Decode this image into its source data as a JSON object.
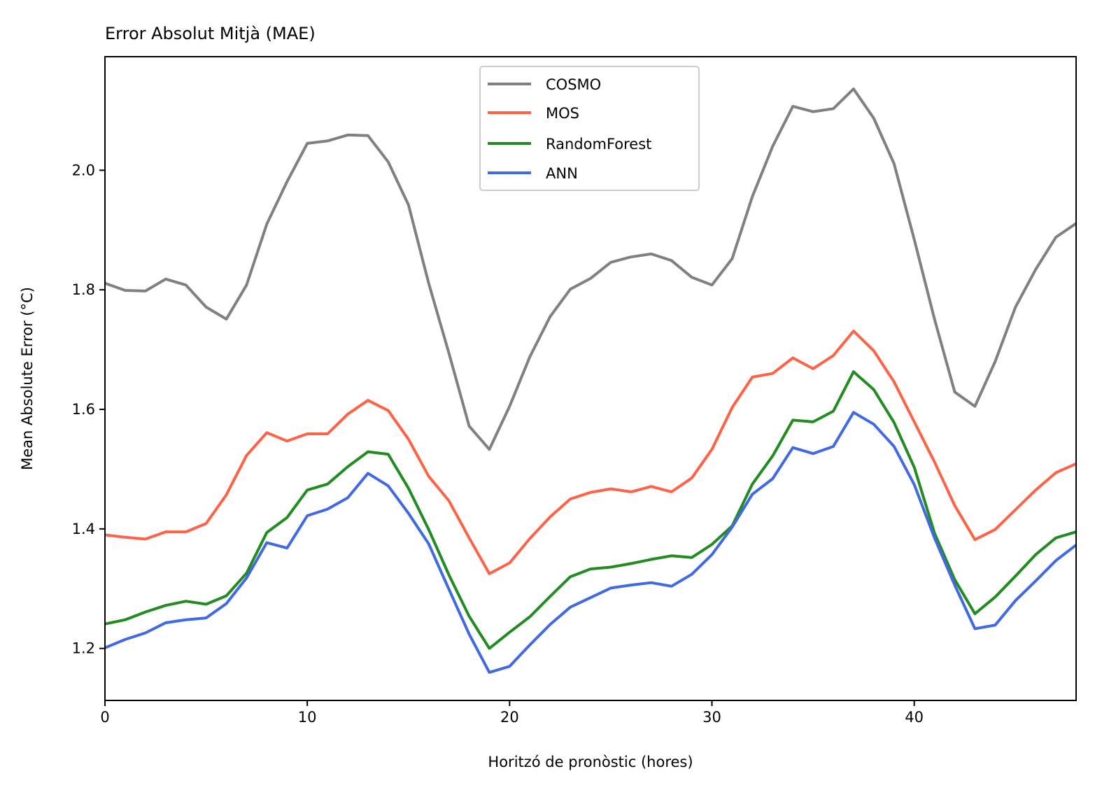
{
  "chart_data": {
    "type": "line",
    "title": "Error Absolut Mitjà (MAE)",
    "xlabel": "Horitzó de pronòstic (hores)",
    "ylabel": "Mean Absolute Error (°C)",
    "xlim": [
      0,
      48
    ],
    "ylim": [
      1.113,
      2.19
    ],
    "xticks": [
      0,
      10,
      20,
      30,
      40
    ],
    "xtick_labels": [
      "0",
      "10",
      "20",
      "30",
      "40"
    ],
    "yticks": [
      1.2,
      1.4,
      1.6,
      1.8,
      2.0
    ],
    "ytick_labels": [
      "1.2",
      "1.4",
      "1.6",
      "1.8",
      "2.0"
    ],
    "grid": false,
    "legend_position": "top-center",
    "x": [
      0,
      1,
      2,
      3,
      4,
      5,
      6,
      7,
      8,
      9,
      10,
      11,
      12,
      13,
      14,
      15,
      16,
      17,
      18,
      19,
      20,
      21,
      22,
      23,
      24,
      25,
      26,
      27,
      28,
      29,
      30,
      31,
      32,
      33,
      34,
      35,
      36,
      37,
      38,
      39,
      40,
      41,
      42,
      43,
      44,
      45,
      46,
      47,
      48
    ],
    "series": [
      {
        "name": "COSMO",
        "color": "#808080",
        "values": [
          1.811,
          1.799,
          1.798,
          1.818,
          1.808,
          1.771,
          1.751,
          1.808,
          1.91,
          1.981,
          2.045,
          2.049,
          2.059,
          2.058,
          2.014,
          1.942,
          1.811,
          1.694,
          1.572,
          1.533,
          1.605,
          1.688,
          1.755,
          1.801,
          1.819,
          1.846,
          1.855,
          1.86,
          1.849,
          1.821,
          1.808,
          1.852,
          1.956,
          2.04,
          2.107,
          2.098,
          2.103,
          2.136,
          2.087,
          2.011,
          1.884,
          1.751,
          1.629,
          1.605,
          1.68,
          1.771,
          1.834,
          1.888,
          1.911
        ]
      },
      {
        "name": "MOS",
        "color": "#ff6347",
        "values": [
          1.39,
          1.386,
          1.383,
          1.395,
          1.395,
          1.409,
          1.457,
          1.523,
          1.561,
          1.547,
          1.559,
          1.559,
          1.592,
          1.615,
          1.598,
          1.55,
          1.488,
          1.447,
          1.385,
          1.325,
          1.343,
          1.384,
          1.42,
          1.45,
          1.461,
          1.467,
          1.462,
          1.471,
          1.462,
          1.485,
          1.533,
          1.603,
          1.654,
          1.66,
          1.686,
          1.668,
          1.69,
          1.731,
          1.698,
          1.646,
          1.579,
          1.512,
          1.439,
          1.382,
          1.399,
          1.432,
          1.465,
          1.494,
          1.509
        ]
      },
      {
        "name": "RandomForest",
        "color": "#228b22",
        "values": [
          1.241,
          1.248,
          1.261,
          1.272,
          1.279,
          1.274,
          1.288,
          1.326,
          1.394,
          1.419,
          1.465,
          1.475,
          1.504,
          1.529,
          1.525,
          1.468,
          1.399,
          1.323,
          1.254,
          1.2,
          1.227,
          1.253,
          1.287,
          1.32,
          1.333,
          1.336,
          1.342,
          1.349,
          1.355,
          1.352,
          1.374,
          1.405,
          1.475,
          1.522,
          1.582,
          1.579,
          1.597,
          1.663,
          1.633,
          1.578,
          1.503,
          1.393,
          1.315,
          1.258,
          1.286,
          1.321,
          1.357,
          1.385,
          1.395
        ]
      },
      {
        "name": "ANN",
        "color": "#4169e1",
        "values": [
          1.201,
          1.215,
          1.226,
          1.243,
          1.248,
          1.251,
          1.275,
          1.318,
          1.377,
          1.368,
          1.422,
          1.433,
          1.452,
          1.493,
          1.472,
          1.426,
          1.375,
          1.299,
          1.224,
          1.16,
          1.17,
          1.206,
          1.24,
          1.269,
          1.285,
          1.301,
          1.306,
          1.31,
          1.304,
          1.324,
          1.357,
          1.403,
          1.458,
          1.484,
          1.536,
          1.526,
          1.538,
          1.595,
          1.575,
          1.538,
          1.474,
          1.385,
          1.306,
          1.233,
          1.239,
          1.28,
          1.313,
          1.347,
          1.373
        ]
      }
    ]
  }
}
